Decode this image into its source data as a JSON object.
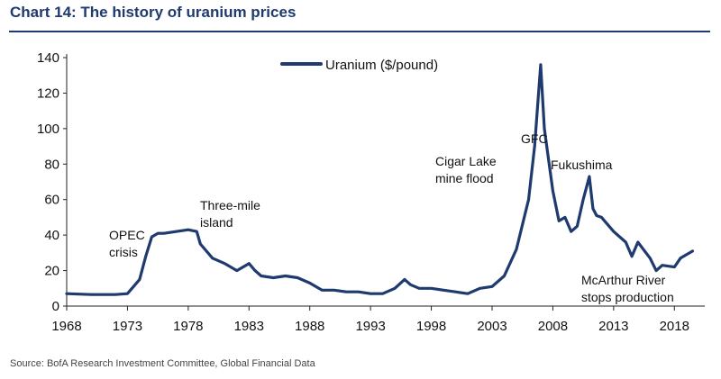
{
  "title": "Chart 14: The history of uranium prices",
  "source": "Source: BofA Research Investment Committee, Global Financial Data",
  "colors": {
    "line": "#1f3a6e",
    "title": "#1f3a6e"
  },
  "chart_data": {
    "type": "line",
    "title": "Chart 14: The history of uranium prices",
    "legend": {
      "label": "Uranium ($/pound)",
      "position": "top-center"
    },
    "ylim": [
      0,
      140
    ],
    "yticks": [
      0,
      20,
      40,
      60,
      80,
      100,
      120,
      140
    ],
    "xlim": [
      1968,
      2020
    ],
    "xticks": [
      1968,
      1973,
      1978,
      1983,
      1988,
      1993,
      1998,
      2003,
      2008,
      2013,
      2018
    ],
    "grid": false,
    "series": [
      {
        "name": "Uranium ($/pound)",
        "x": [
          1968,
          1970,
          1972,
          1973,
          1974,
          1974.5,
          1975,
          1975.5,
          1976,
          1977,
          1978,
          1978.7,
          1979,
          1980,
          1981,
          1982,
          1983,
          1983.5,
          1984,
          1985,
          1986,
          1987,
          1988,
          1989,
          1990,
          1991,
          1992,
          1993,
          1994,
          1995,
          1995.8,
          1996.3,
          1997,
          1998,
          1999,
          2000,
          2001,
          2002,
          2003,
          2004,
          2005,
          2006,
          2006.5,
          2007,
          2007.3,
          2007.6,
          2008,
          2008.5,
          2009,
          2009.5,
          2010,
          2010.5,
          2011,
          2011.3,
          2011.6,
          2012,
          2013,
          2014,
          2014.5,
          2015,
          2016,
          2016.5,
          2017,
          2018,
          2018.5,
          2019,
          2019.5
        ],
        "y": [
          7,
          6.5,
          6.5,
          7,
          15,
          28,
          39,
          41,
          41,
          42,
          43,
          42,
          35,
          27,
          24,
          20,
          24,
          20,
          17,
          16,
          17,
          16,
          13,
          9,
          9,
          8,
          8,
          7,
          7,
          10,
          15,
          12,
          10,
          10,
          9,
          8,
          7,
          10,
          11,
          17,
          32,
          60,
          90,
          136,
          100,
          85,
          65,
          48,
          50,
          42,
          45,
          60,
          73,
          55,
          51,
          50,
          42,
          36,
          28,
          36,
          27,
          20,
          23,
          22,
          27,
          29,
          31
        ]
      }
    ],
    "annotations": [
      {
        "text_lines": [
          "OPEC",
          "crisis"
        ]
      },
      {
        "text_lines": [
          "Three-mile",
          "island"
        ]
      },
      {
        "text_lines": [
          "Cigar Lake",
          "mine flood"
        ]
      },
      {
        "text_lines": [
          "GFC"
        ]
      },
      {
        "text_lines": [
          "Fukushima"
        ]
      },
      {
        "text_lines": [
          "McArthur River",
          "stops production"
        ]
      }
    ]
  }
}
